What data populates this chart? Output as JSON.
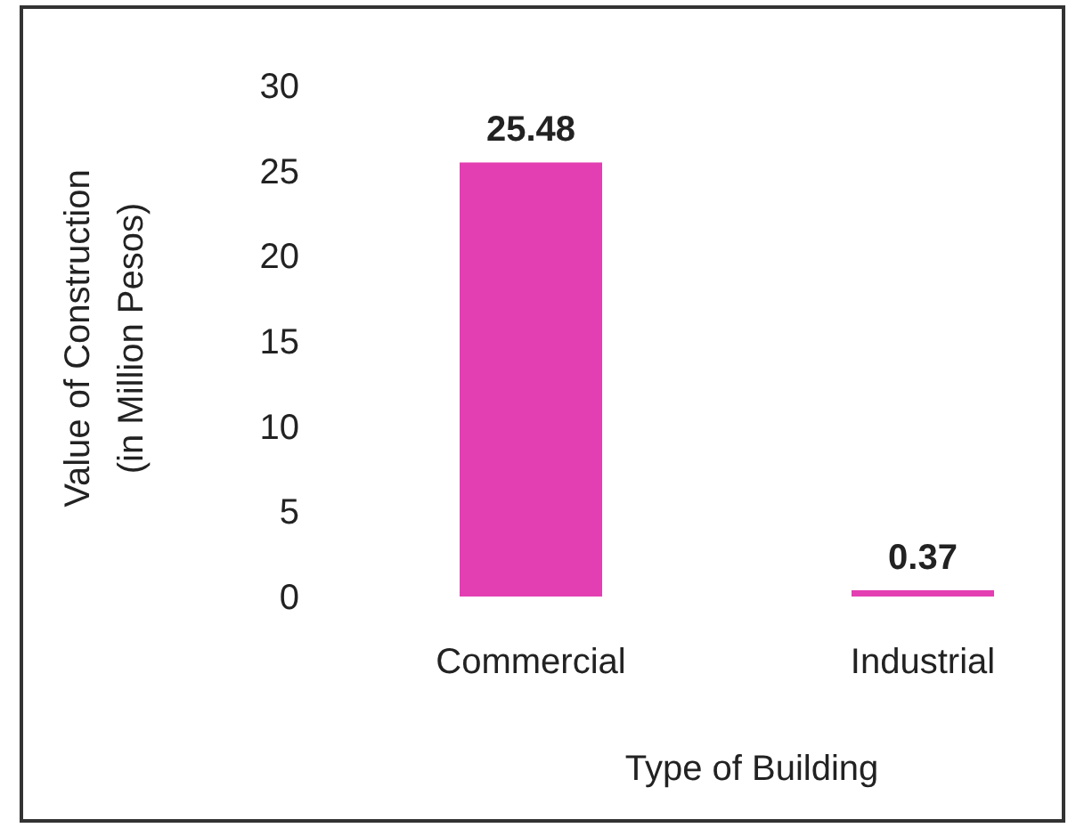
{
  "chart_data": {
    "type": "bar",
    "xlabel": "Type of Building",
    "ylabel": "Value of Construction\n(in Million Pesos)",
    "categories": [
      "Commercial",
      "Industrial"
    ],
    "values": [
      25.48,
      0.37
    ],
    "color": "#e33fb2",
    "ylim": [
      0,
      30
    ],
    "yticks": [
      0,
      5,
      10,
      15,
      20,
      25,
      30
    ],
    "data_labels": true
  }
}
